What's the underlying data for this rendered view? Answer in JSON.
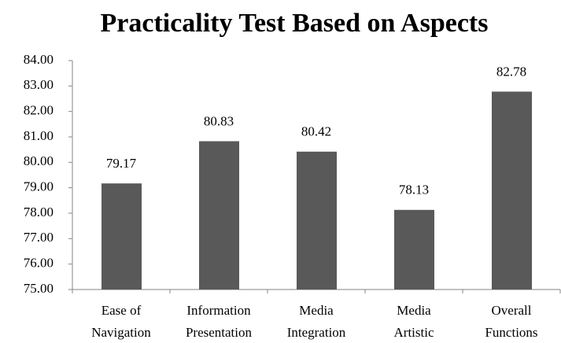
{
  "chart_data": {
    "type": "bar",
    "title": "Practicality Test Based on Aspects",
    "categories": [
      [
        "Ease of",
        "Navigation"
      ],
      [
        "Information",
        "Presentation"
      ],
      [
        "Media",
        "Integration"
      ],
      [
        "Media",
        "Artistic"
      ],
      [
        "Overall",
        "Functions"
      ]
    ],
    "values": [
      79.17,
      80.83,
      80.42,
      78.13,
      82.78
    ],
    "color": "#595959",
    "ylim": [
      75,
      84
    ],
    "yticks": [
      {
        "value": 75,
        "label": "75.00"
      },
      {
        "value": 76,
        "label": "76.00"
      },
      {
        "value": 77,
        "label": "77.00"
      },
      {
        "value": 78,
        "label": "78.00"
      },
      {
        "value": 79,
        "label": "79.00"
      },
      {
        "value": 80,
        "label": "80.00"
      },
      {
        "value": 81,
        "label": "81.00"
      },
      {
        "value": 82,
        "label": "82.00"
      },
      {
        "value": 83,
        "label": "83.00"
      },
      {
        "value": 84,
        "label": "84.00"
      }
    ],
    "grid": false
  }
}
